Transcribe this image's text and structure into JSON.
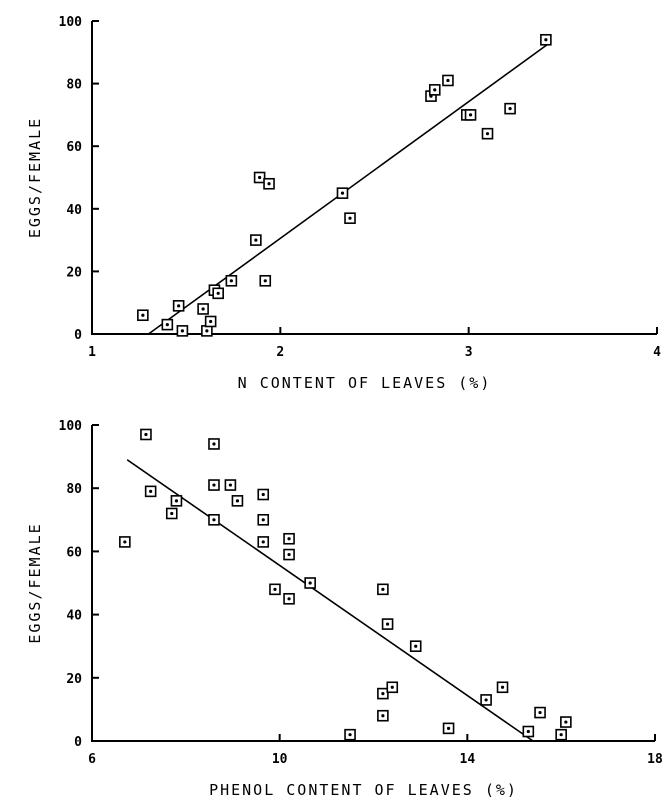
{
  "chart_data": [
    {
      "type": "scatter",
      "title": "",
      "xlabel": "N CONTENT OF LEAVES (%)",
      "ylabel": "EGGS/FEMALE",
      "xlim": [
        1,
        4
      ],
      "ylim": [
        0,
        100
      ],
      "xticks": [
        1,
        2,
        3,
        4
      ],
      "yticks": [
        0,
        20,
        40,
        60,
        80,
        100
      ],
      "xtick_labels": [
        "1",
        "2",
        "3",
        "4"
      ],
      "ytick_labels": [
        "0",
        "20",
        "40",
        "60",
        "80",
        "100"
      ],
      "grid": false,
      "marker": "square",
      "points": [
        {
          "x": 1.27,
          "y": 6
        },
        {
          "x": 1.4,
          "y": 3
        },
        {
          "x": 1.46,
          "y": 9
        },
        {
          "x": 1.48,
          "y": 1
        },
        {
          "x": 1.59,
          "y": 8
        },
        {
          "x": 1.61,
          "y": 1
        },
        {
          "x": 1.63,
          "y": 4
        },
        {
          "x": 1.65,
          "y": 14
        },
        {
          "x": 1.67,
          "y": 13
        },
        {
          "x": 1.74,
          "y": 17
        },
        {
          "x": 1.87,
          "y": 30
        },
        {
          "x": 1.89,
          "y": 50
        },
        {
          "x": 1.92,
          "y": 17
        },
        {
          "x": 1.94,
          "y": 48
        },
        {
          "x": 2.33,
          "y": 45
        },
        {
          "x": 2.37,
          "y": 37
        },
        {
          "x": 2.8,
          "y": 76
        },
        {
          "x": 2.82,
          "y": 78
        },
        {
          "x": 2.89,
          "y": 81
        },
        {
          "x": 2.99,
          "y": 70
        },
        {
          "x": 3.01,
          "y": 70
        },
        {
          "x": 3.1,
          "y": 64
        },
        {
          "x": 3.22,
          "y": 72
        },
        {
          "x": 3.41,
          "y": 94
        }
      ],
      "fit_line": {
        "x": [
          1.3,
          3.43
        ],
        "y": [
          0,
          93
        ]
      }
    },
    {
      "type": "scatter",
      "title": "",
      "xlabel": "PHENOL CONTENT OF LEAVES (%)",
      "ylabel": "EGGS/FEMALE",
      "xlim": [
        6,
        18
      ],
      "ylim": [
        0,
        100
      ],
      "xticks": [
        6,
        10,
        14,
        18
      ],
      "yticks": [
        0,
        20,
        40,
        60,
        80,
        100
      ],
      "xtick_labels": [
        "6",
        "10",
        "14",
        "18"
      ],
      "ytick_labels": [
        "0",
        "20",
        "40",
        "60",
        "80",
        "100"
      ],
      "grid": false,
      "marker": "square",
      "points": [
        {
          "x": 6.7,
          "y": 63
        },
        {
          "x": 7.15,
          "y": 97
        },
        {
          "x": 7.25,
          "y": 79
        },
        {
          "x": 7.7,
          "y": 72
        },
        {
          "x": 7.8,
          "y": 76
        },
        {
          "x": 8.6,
          "y": 94
        },
        {
          "x": 8.6,
          "y": 81
        },
        {
          "x": 8.6,
          "y": 70
        },
        {
          "x": 8.95,
          "y": 81
        },
        {
          "x": 9.1,
          "y": 76
        },
        {
          "x": 9.65,
          "y": 78
        },
        {
          "x": 9.65,
          "y": 70
        },
        {
          "x": 9.65,
          "y": 63
        },
        {
          "x": 9.9,
          "y": 48
        },
        {
          "x": 10.2,
          "y": 64
        },
        {
          "x": 10.2,
          "y": 59
        },
        {
          "x": 10.2,
          "y": 45
        },
        {
          "x": 10.65,
          "y": 50
        },
        {
          "x": 11.5,
          "y": 2
        },
        {
          "x": 12.2,
          "y": 48
        },
        {
          "x": 12.2,
          "y": 15
        },
        {
          "x": 12.2,
          "y": 8
        },
        {
          "x": 12.3,
          "y": 37
        },
        {
          "x": 12.4,
          "y": 17
        },
        {
          "x": 12.9,
          "y": 30
        },
        {
          "x": 13.6,
          "y": 4
        },
        {
          "x": 14.4,
          "y": 13
        },
        {
          "x": 14.75,
          "y": 17
        },
        {
          "x": 15.3,
          "y": 3
        },
        {
          "x": 15.55,
          "y": 9
        },
        {
          "x": 16.0,
          "y": 2
        },
        {
          "x": 16.1,
          "y": 6
        }
      ],
      "fit_line": {
        "x": [
          6.75,
          15.4
        ],
        "y": [
          89,
          0
        ]
      }
    }
  ]
}
